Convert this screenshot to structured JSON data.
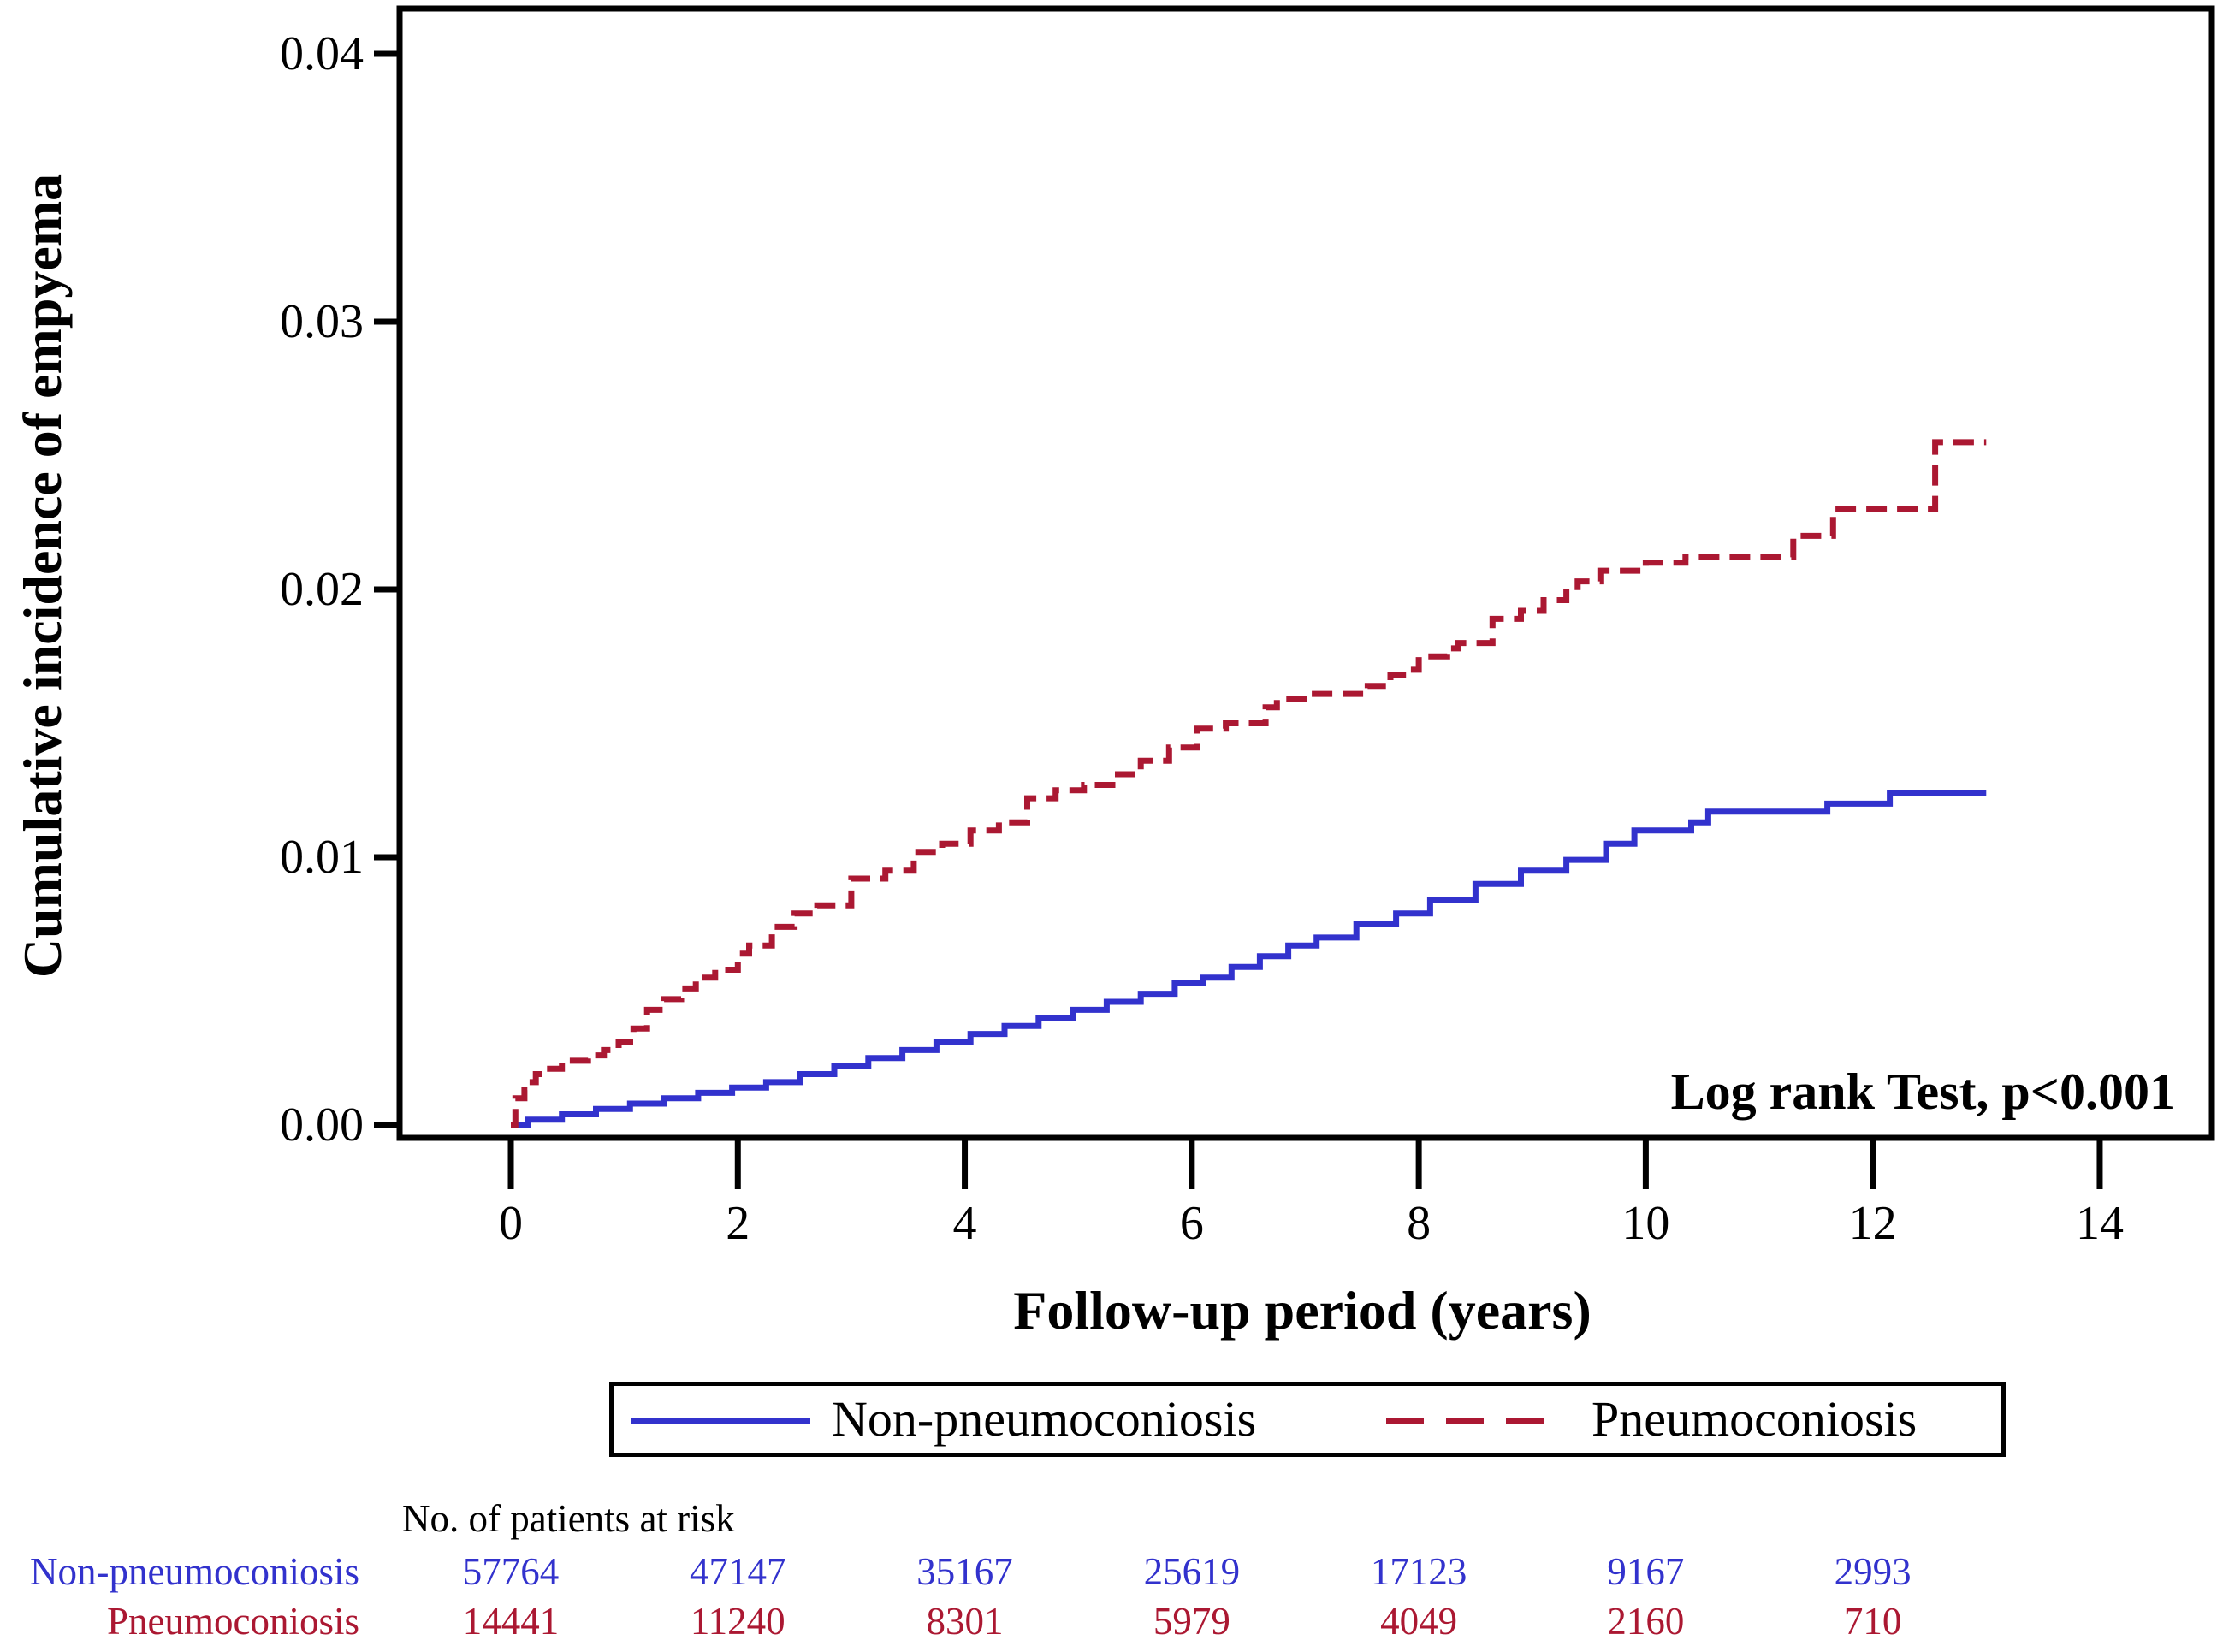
{
  "colors": {
    "non_pneumoconiosis": "#3232cd",
    "pneumoconiosis": "#ab1832",
    "axis": "#000000",
    "background": "#ffffff"
  },
  "chart": {
    "y_axis": {
      "title": "Cumulative incidence of empyema",
      "tick_labels": [
        "0.00",
        "0.01",
        "0.02",
        "0.03",
        "0.04"
      ],
      "tick_values": [
        0,
        0.01,
        0.02,
        0.03,
        0.04
      ]
    },
    "x_axis": {
      "title": "Follow-up period (years)",
      "tick_labels": [
        "0",
        "2",
        "4",
        "6",
        "8",
        "10",
        "12",
        "14"
      ],
      "tick_values": [
        0,
        2,
        4,
        6,
        8,
        10,
        12,
        14
      ]
    },
    "annotation": "Log rank Test, p<0.001",
    "legend": [
      {
        "label": "Non-pneumoconiosis",
        "style": "solid",
        "color": "#3232cd"
      },
      {
        "label": "Pneumoconiosis",
        "style": "dashed",
        "color": "#ab1832"
      }
    ]
  },
  "chart_data": {
    "type": "line",
    "subtype": "kaplan-meier-cumulative-incidence-step",
    "title": "",
    "xlabel": "Follow-up period (years)",
    "ylabel": "Cumulative incidence of empyema",
    "xlim": [
      0,
      14
    ],
    "ylim": [
      0,
      0.04
    ],
    "grid": false,
    "legend_position": "bottom",
    "annotation": "Log rank Test, p<0.001",
    "series": [
      {
        "name": "Non-pneumoconiosis",
        "color": "#3232cd",
        "line_style": "solid",
        "step": true,
        "points": [
          [
            0,
            0.0
          ],
          [
            0.15,
            0.0002
          ],
          [
            0.45,
            0.0004
          ],
          [
            0.75,
            0.0006
          ],
          [
            1.05,
            0.0008
          ],
          [
            1.35,
            0.001
          ],
          [
            1.65,
            0.0012
          ],
          [
            1.95,
            0.0014
          ],
          [
            2.25,
            0.0016
          ],
          [
            2.55,
            0.0019
          ],
          [
            2.85,
            0.0022
          ],
          [
            3.15,
            0.0025
          ],
          [
            3.45,
            0.0028
          ],
          [
            3.75,
            0.0031
          ],
          [
            4.05,
            0.0034
          ],
          [
            4.35,
            0.0037
          ],
          [
            4.65,
            0.004
          ],
          [
            4.95,
            0.0043
          ],
          [
            5.25,
            0.0046
          ],
          [
            5.55,
            0.0049
          ],
          [
            5.85,
            0.0053
          ],
          [
            6.1,
            0.0055
          ],
          [
            6.35,
            0.0059
          ],
          [
            6.6,
            0.0063
          ],
          [
            6.85,
            0.0067
          ],
          [
            7.1,
            0.007
          ],
          [
            7.45,
            0.0075
          ],
          [
            7.8,
            0.0079
          ],
          [
            8.1,
            0.0084
          ],
          [
            8.5,
            0.009
          ],
          [
            8.9,
            0.0095
          ],
          [
            9.3,
            0.0099
          ],
          [
            9.65,
            0.0105
          ],
          [
            9.9,
            0.011
          ],
          [
            10.4,
            0.0113
          ],
          [
            10.55,
            0.0117
          ],
          [
            11.6,
            0.012
          ],
          [
            12.15,
            0.0124
          ],
          [
            13.0,
            0.0124
          ]
        ]
      },
      {
        "name": "Pneumoconiosis",
        "color": "#ab1832",
        "line_style": "dashed",
        "step": true,
        "points": [
          [
            0,
            0.0
          ],
          [
            0.04,
            0.001
          ],
          [
            0.12,
            0.0013
          ],
          [
            0.15,
            0.0016
          ],
          [
            0.22,
            0.0019
          ],
          [
            0.3,
            0.0021
          ],
          [
            0.45,
            0.0024
          ],
          [
            0.68,
            0.0026
          ],
          [
            0.82,
            0.0028
          ],
          [
            0.95,
            0.0031
          ],
          [
            1.08,
            0.0036
          ],
          [
            1.2,
            0.0043
          ],
          [
            1.35,
            0.0047
          ],
          [
            1.5,
            0.0051
          ],
          [
            1.63,
            0.0055
          ],
          [
            1.8,
            0.0058
          ],
          [
            2.0,
            0.0064
          ],
          [
            2.1,
            0.0067
          ],
          [
            2.3,
            0.0074
          ],
          [
            2.5,
            0.0079
          ],
          [
            2.7,
            0.0082
          ],
          [
            3.0,
            0.0092
          ],
          [
            3.3,
            0.0095
          ],
          [
            3.55,
            0.0102
          ],
          [
            3.8,
            0.0105
          ],
          [
            4.05,
            0.011
          ],
          [
            4.3,
            0.0113
          ],
          [
            4.55,
            0.0122
          ],
          [
            4.8,
            0.0125
          ],
          [
            5.05,
            0.0127
          ],
          [
            5.3,
            0.0131
          ],
          [
            5.55,
            0.0136
          ],
          [
            5.8,
            0.0141
          ],
          [
            6.05,
            0.0148
          ],
          [
            6.3,
            0.015
          ],
          [
            6.65,
            0.0156
          ],
          [
            6.75,
            0.0159
          ],
          [
            7.05,
            0.0161
          ],
          [
            7.55,
            0.0164
          ],
          [
            7.75,
            0.0168
          ],
          [
            7.9,
            0.017
          ],
          [
            8.0,
            0.0175
          ],
          [
            8.25,
            0.0178
          ],
          [
            8.35,
            0.018
          ],
          [
            8.65,
            0.0189
          ],
          [
            8.9,
            0.0192
          ],
          [
            9.1,
            0.0196
          ],
          [
            9.3,
            0.0199
          ],
          [
            9.4,
            0.0203
          ],
          [
            9.6,
            0.0207
          ],
          [
            10.0,
            0.021
          ],
          [
            10.35,
            0.0212
          ],
          [
            11.3,
            0.022
          ],
          [
            11.65,
            0.023
          ],
          [
            12.55,
            0.0255
          ],
          [
            13.0,
            0.0255
          ]
        ]
      }
    ]
  },
  "risk_table": {
    "header": "No. of patients at risk",
    "time_points": [
      0,
      2,
      4,
      6,
      8,
      10,
      12
    ],
    "rows": [
      {
        "label": "Non-pneumoconiosis",
        "color": "#3232cd",
        "values": [
          "57764",
          "47147",
          "35167",
          "25619",
          "17123",
          "9167",
          "2993"
        ]
      },
      {
        "label": "Pneumoconiosis",
        "color": "#ab1832",
        "values": [
          "14441",
          "11240",
          "8301",
          "5979",
          "4049",
          "2160",
          "710"
        ]
      }
    ]
  }
}
